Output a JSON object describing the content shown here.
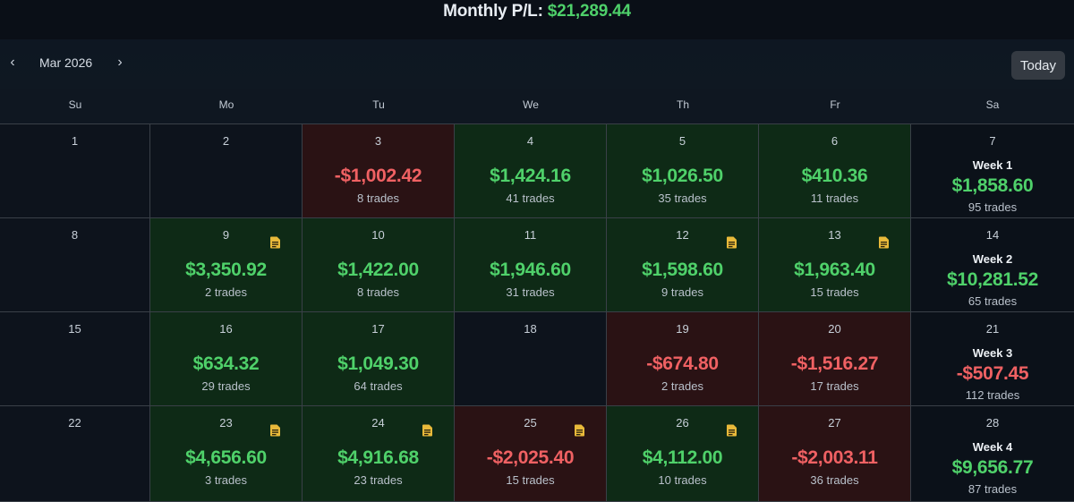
{
  "header": {
    "monthly_label": "Monthly P/L:",
    "monthly_value": "$21,289.44"
  },
  "toolbar": {
    "prev_icon": "‹",
    "next_icon": "›",
    "month": "Mar 2026",
    "today_label": "Today"
  },
  "colors": {
    "positive": "#4fd16a",
    "negative": "#f06163",
    "note_icon": "#e8b93a"
  },
  "weekdays": [
    "Su",
    "Mo",
    "Tu",
    "We",
    "Th",
    "Fr",
    "Sa"
  ],
  "weeks": [
    {
      "days": [
        {
          "day": "1",
          "amount": "",
          "trades": "",
          "status": "empty",
          "note": false
        },
        {
          "day": "2",
          "amount": "",
          "trades": "",
          "status": "empty",
          "note": false
        },
        {
          "day": "3",
          "amount": "-$1,002.42",
          "trades": "8 trades",
          "status": "neg",
          "note": false
        },
        {
          "day": "4",
          "amount": "$1,424.16",
          "trades": "41 trades",
          "status": "pos",
          "note": false
        },
        {
          "day": "5",
          "amount": "$1,026.50",
          "trades": "35 trades",
          "status": "pos",
          "note": false
        },
        {
          "day": "6",
          "amount": "$410.36",
          "trades": "11 trades",
          "status": "pos",
          "note": false
        }
      ],
      "summary": {
        "day": "7",
        "label": "Week 1",
        "amount": "$1,858.60",
        "trades": "95 trades",
        "status": "pos"
      }
    },
    {
      "days": [
        {
          "day": "8",
          "amount": "",
          "trades": "",
          "status": "empty",
          "note": false
        },
        {
          "day": "9",
          "amount": "$3,350.92",
          "trades": "2 trades",
          "status": "pos",
          "note": true
        },
        {
          "day": "10",
          "amount": "$1,422.00",
          "trades": "8 trades",
          "status": "pos",
          "note": false
        },
        {
          "day": "11",
          "amount": "$1,946.60",
          "trades": "31 trades",
          "status": "pos",
          "note": false
        },
        {
          "day": "12",
          "amount": "$1,598.60",
          "trades": "9 trades",
          "status": "pos",
          "note": true
        },
        {
          "day": "13",
          "amount": "$1,963.40",
          "trades": "15 trades",
          "status": "pos",
          "note": true
        }
      ],
      "summary": {
        "day": "14",
        "label": "Week 2",
        "amount": "$10,281.52",
        "trades": "65 trades",
        "status": "pos"
      }
    },
    {
      "days": [
        {
          "day": "15",
          "amount": "",
          "trades": "",
          "status": "empty",
          "note": false
        },
        {
          "day": "16",
          "amount": "$634.32",
          "trades": "29 trades",
          "status": "pos",
          "note": false
        },
        {
          "day": "17",
          "amount": "$1,049.30",
          "trades": "64 trades",
          "status": "pos",
          "note": false
        },
        {
          "day": "18",
          "amount": "",
          "trades": "",
          "status": "empty",
          "note": false
        },
        {
          "day": "19",
          "amount": "-$674.80",
          "trades": "2 trades",
          "status": "neg",
          "note": false
        },
        {
          "day": "20",
          "amount": "-$1,516.27",
          "trades": "17 trades",
          "status": "neg",
          "note": false
        }
      ],
      "summary": {
        "day": "21",
        "label": "Week 3",
        "amount": "-$507.45",
        "trades": "112 trades",
        "status": "neg"
      }
    },
    {
      "days": [
        {
          "day": "22",
          "amount": "",
          "trades": "",
          "status": "empty",
          "note": false
        },
        {
          "day": "23",
          "amount": "$4,656.60",
          "trades": "3 trades",
          "status": "pos",
          "note": true
        },
        {
          "day": "24",
          "amount": "$4,916.68",
          "trades": "23 trades",
          "status": "pos",
          "note": true
        },
        {
          "day": "25",
          "amount": "-$2,025.40",
          "trades": "15 trades",
          "status": "neg",
          "note": true
        },
        {
          "day": "26",
          "amount": "$4,112.00",
          "trades": "10 trades",
          "status": "pos",
          "note": true
        },
        {
          "day": "27",
          "amount": "-$2,003.11",
          "trades": "36 trades",
          "status": "neg",
          "note": false
        }
      ],
      "summary": {
        "day": "28",
        "label": "Week 4",
        "amount": "$9,656.77",
        "trades": "87 trades",
        "status": "pos"
      }
    }
  ]
}
